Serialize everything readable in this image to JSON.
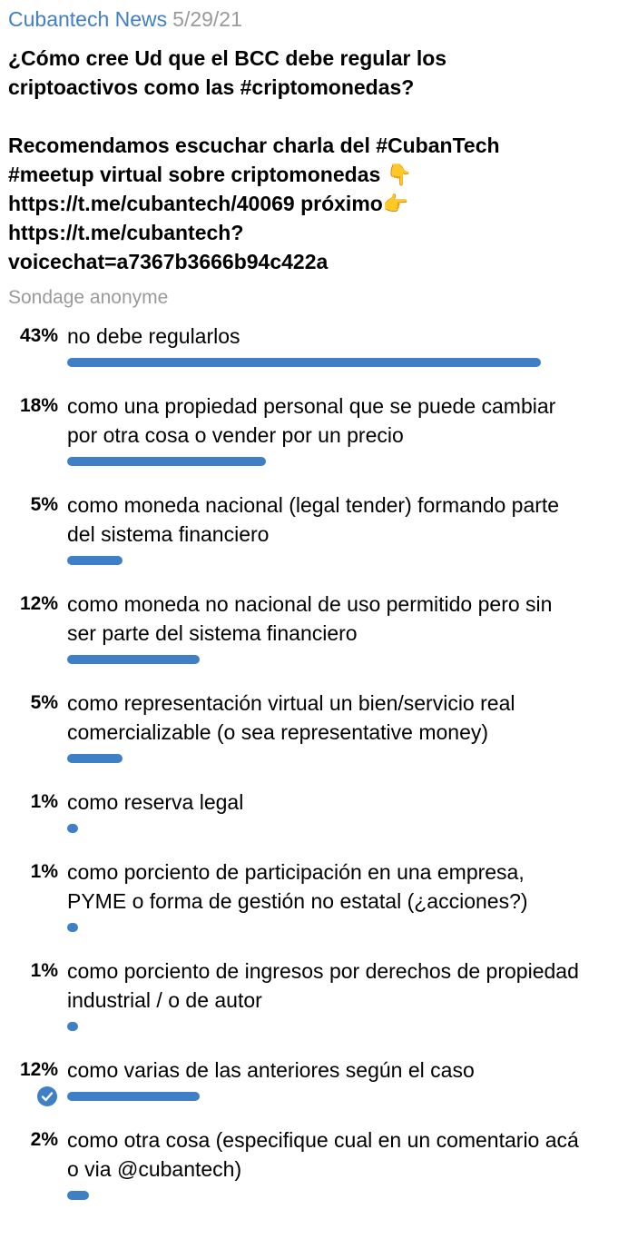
{
  "header": {
    "channel": "Cubantech News",
    "date": "5/29/21"
  },
  "question": {
    "line1": "¿Cómo cree Ud que el BCC debe regular los criptoactivos como las #criptomonedas?",
    "line2": "Recomendamos escuchar charla del #CubanTech #meetup virtual sobre criptomonedas 👇 https://t.me/cubantech/40069  próximo👉https://t.me/cubantech?voicechat=a7367b3666b94c422a"
  },
  "poll_type": "Sondage anonyme",
  "bar_color": "#3f7fc6",
  "options": [
    {
      "percent": "43%",
      "value": 43,
      "text": "no debe regularlos",
      "chosen": false
    },
    {
      "percent": "18%",
      "value": 18,
      "text": "como una propiedad personal que se puede cambiar por otra cosa o vender por un precio",
      "chosen": false
    },
    {
      "percent": "5%",
      "value": 5,
      "text": "como moneda nacional (legal tender) formando parte del sistema financiero",
      "chosen": false
    },
    {
      "percent": "12%",
      "value": 12,
      "text": "como moneda no nacional de uso permitido pero sin ser parte del sistema financiero",
      "chosen": false
    },
    {
      "percent": "5%",
      "value": 5,
      "text": "como representación virtual un bien/servicio real comercializable (o sea representative money)",
      "chosen": false
    },
    {
      "percent": "1%",
      "value": 1,
      "text": "como reserva legal",
      "chosen": false
    },
    {
      "percent": "1%",
      "value": 1,
      "text": "como porciento de participación en una empresa, PYME o forma de gestión no estatal (¿acciones?)",
      "chosen": false
    },
    {
      "percent": "1%",
      "value": 1,
      "text": "como porciento de ingresos por derechos de propiedad industrial / o de autor",
      "chosen": false
    },
    {
      "percent": "12%",
      "value": 12,
      "text": "como varias de las anteriores según el caso",
      "chosen": true
    },
    {
      "percent": "2%",
      "value": 2,
      "text": "como otra cosa (especifique cual en un comentario acá o via @cubantech)",
      "chosen": false
    }
  ]
}
